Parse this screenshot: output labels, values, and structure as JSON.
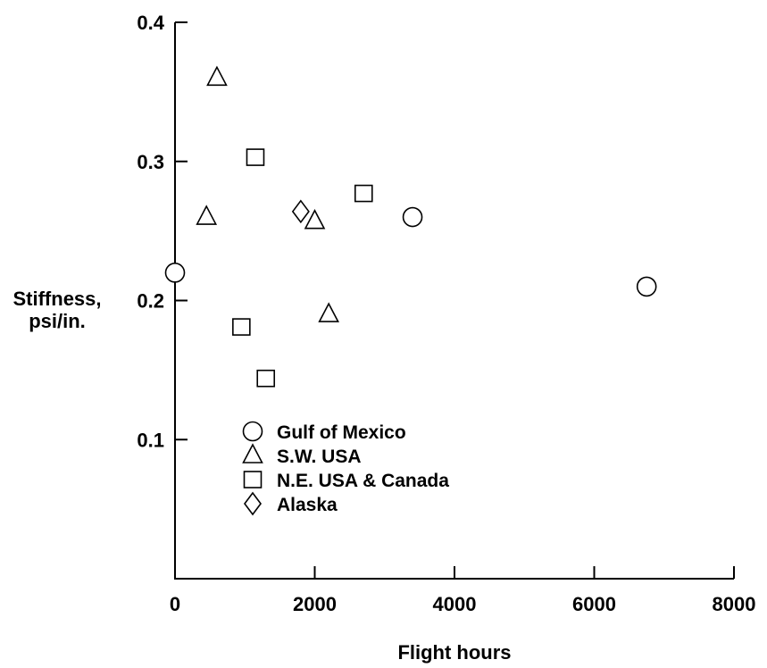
{
  "chart_data": {
    "type": "scatter",
    "xlabel": "Flight hours",
    "ylabel": [
      "Stiffness,",
      "psi/in."
    ],
    "xlim": [
      0,
      8000
    ],
    "ylim": [
      0,
      0.4
    ],
    "xticks": [
      {
        "value": 0,
        "label": "0"
      },
      {
        "value": 2000,
        "label": "2000"
      },
      {
        "value": 4000,
        "label": "4000"
      },
      {
        "value": 6000,
        "label": "6000"
      },
      {
        "value": 8000,
        "label": "8000"
      }
    ],
    "yticks": [
      {
        "value": 0.1,
        "label": "0.1"
      },
      {
        "value": 0.2,
        "label": "0.2"
      },
      {
        "value": 0.3,
        "label": "0.3"
      },
      {
        "value": 0.4,
        "label": "0.4"
      }
    ],
    "grid": false,
    "legend_position": "lower-left",
    "series": [
      {
        "name": "Gulf of Mexico",
        "marker": "circle",
        "points": [
          {
            "x": 0,
            "y": 0.22
          },
          {
            "x": 3400,
            "y": 0.26
          },
          {
            "x": 6750,
            "y": 0.21
          }
        ]
      },
      {
        "name": "S.W. USA",
        "marker": "triangle",
        "points": [
          {
            "x": 450,
            "y": 0.26
          },
          {
            "x": 600,
            "y": 0.36
          },
          {
            "x": 2000,
            "y": 0.257
          },
          {
            "x": 2200,
            "y": 0.19
          }
        ]
      },
      {
        "name": "N.E. USA & Canada",
        "marker": "square",
        "points": [
          {
            "x": 1150,
            "y": 0.303
          },
          {
            "x": 950,
            "y": 0.181
          },
          {
            "x": 1300,
            "y": 0.144
          },
          {
            "x": 2700,
            "y": 0.277
          }
        ]
      },
      {
        "name": "Alaska",
        "marker": "diamond",
        "points": [
          {
            "x": 1800,
            "y": 0.264
          }
        ]
      }
    ]
  }
}
